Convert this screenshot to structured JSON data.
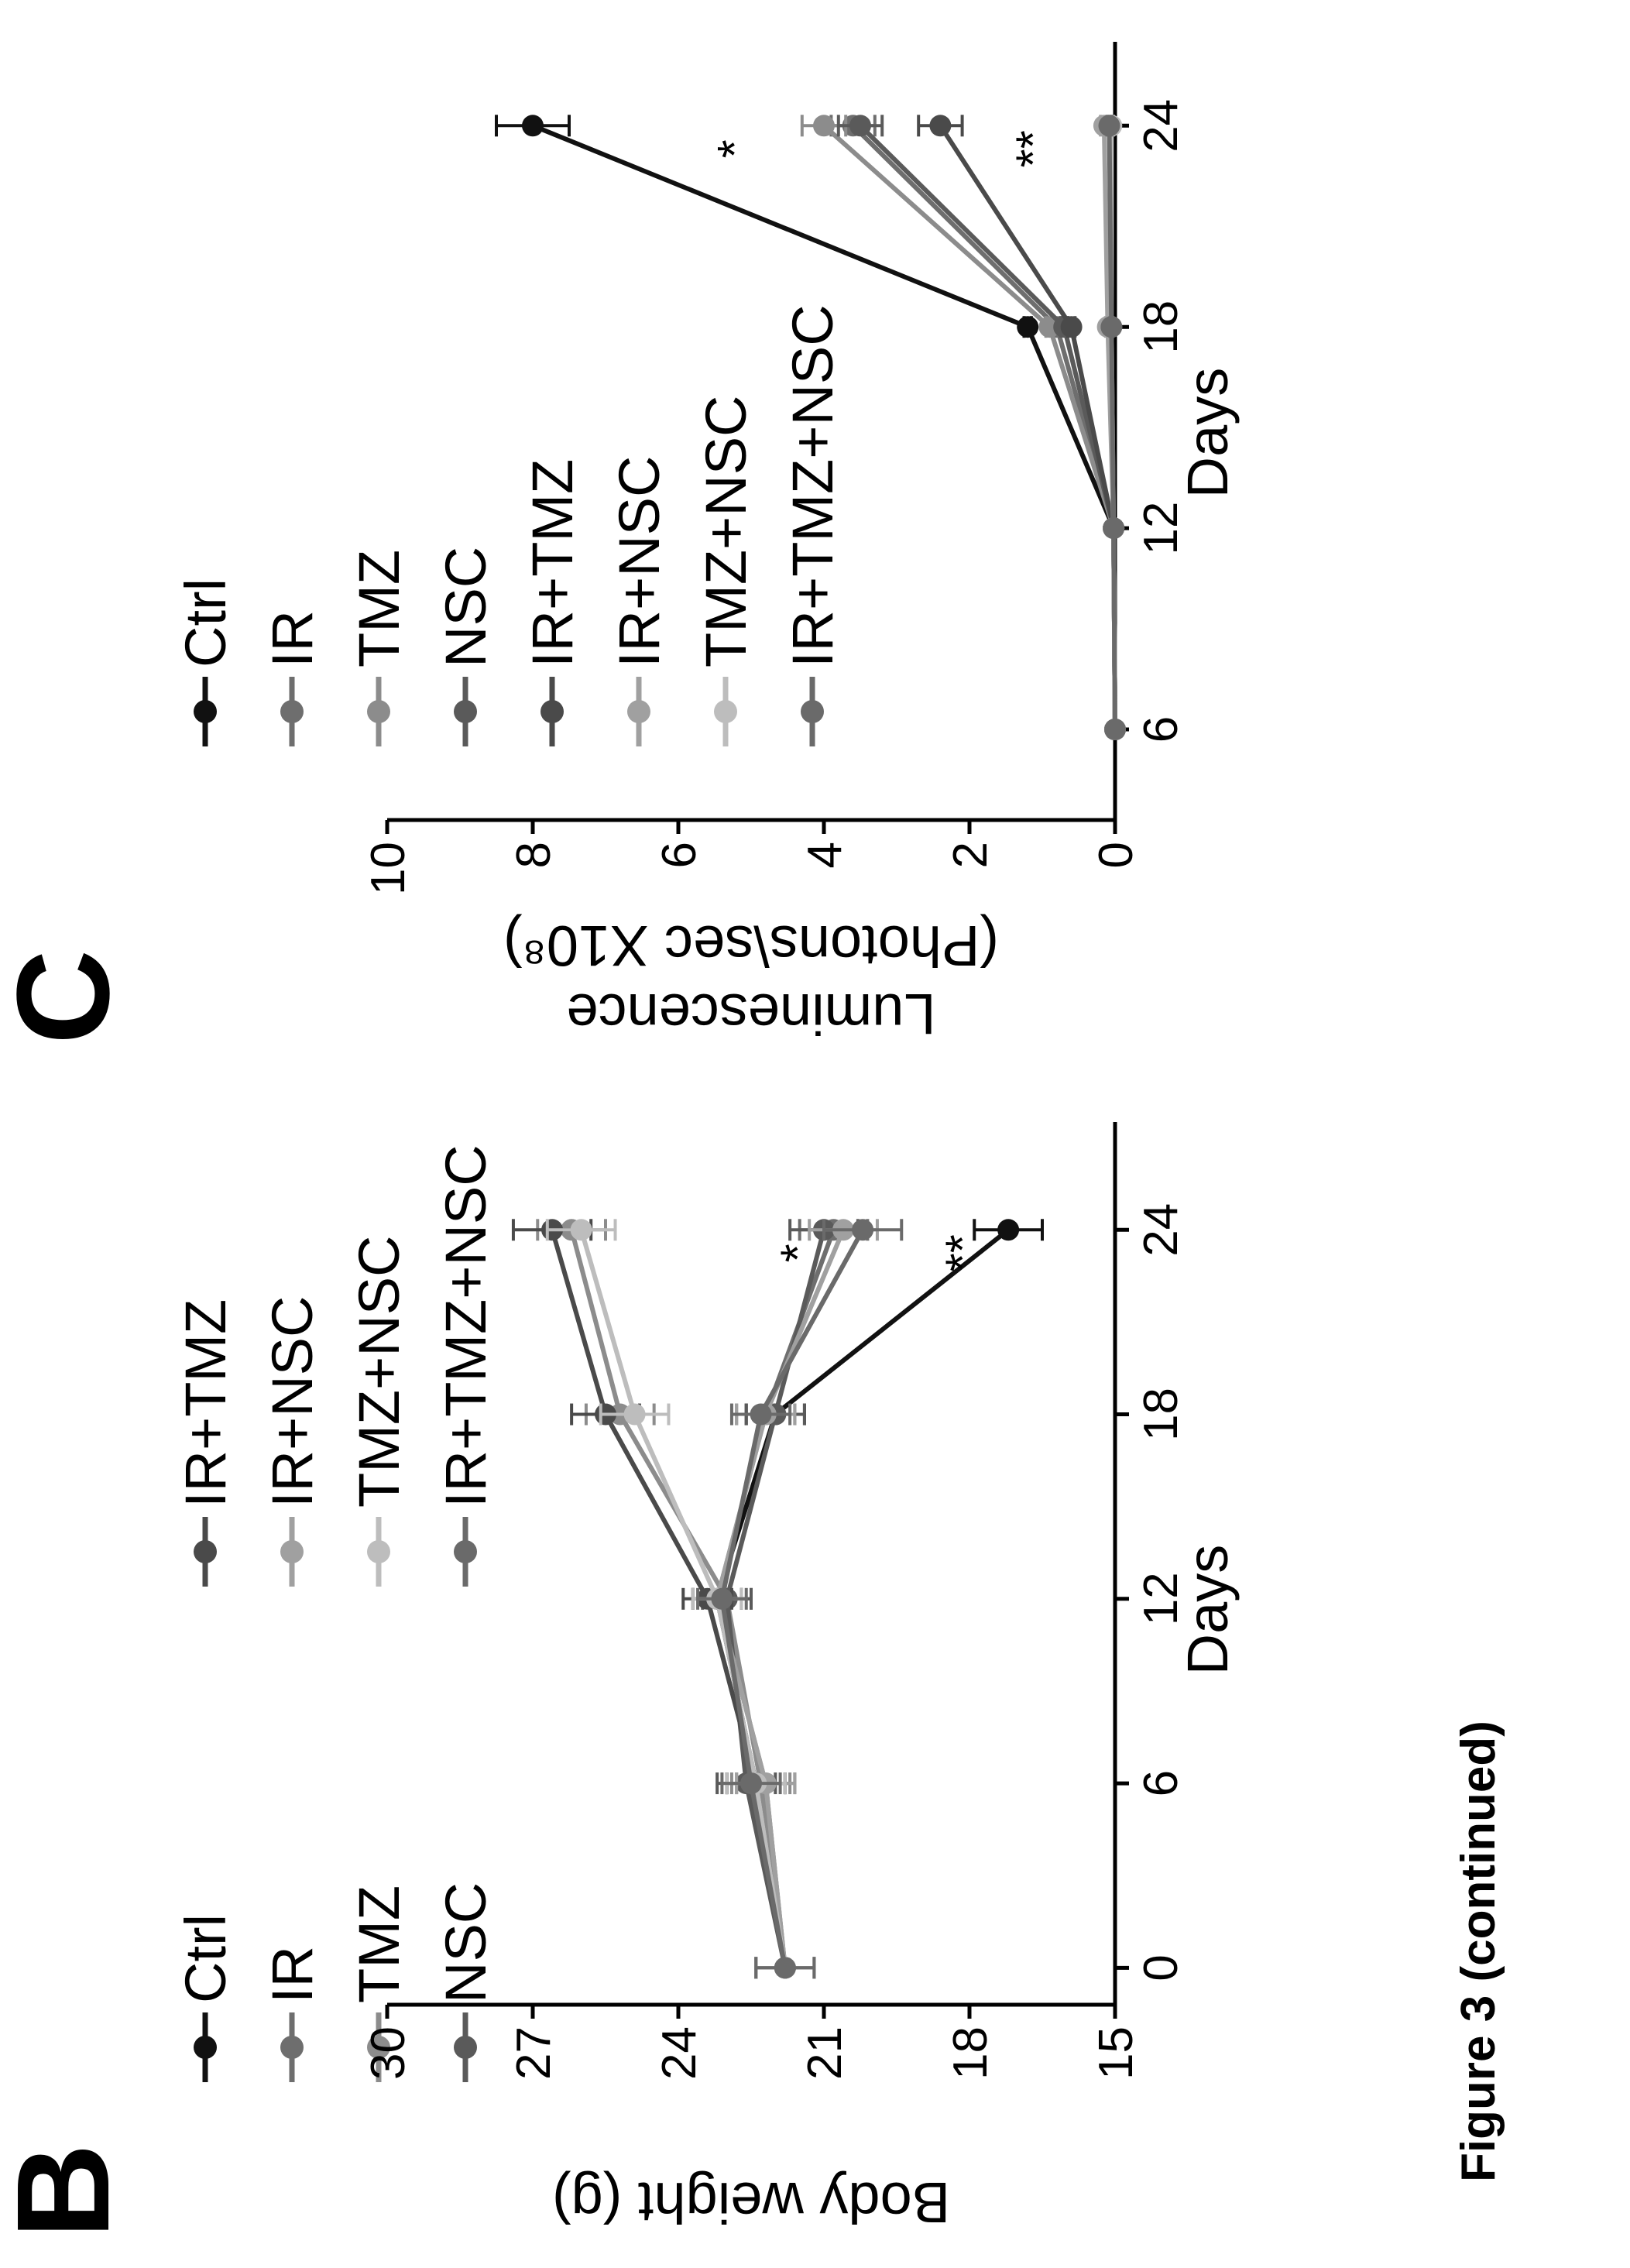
{
  "caption": "Figure 3 (continued)",
  "colors": {
    "Ctrl": "#111111",
    "IR": "#6e6e6e",
    "TMZ": "#8c8c8c",
    "NSC": "#5a5a5a",
    "IR+TMZ": "#4a4a4a",
    "IR+NSC": "#a0a0a0",
    "TMZ+NSC": "#bdbdbd",
    "IR+TMZ+NSC": "#6a6a6a"
  },
  "chart_data": [
    {
      "panel": "B",
      "type": "line",
      "xlabel": "Days",
      "ylabel": "Body weight (g)",
      "xlim": [
        0,
        24
      ],
      "ylim": [
        15,
        30
      ],
      "xticks": [
        "0",
        "6",
        "12",
        "18",
        "24"
      ],
      "yticks": [
        "15",
        "18",
        "21",
        "24",
        "27",
        "30"
      ],
      "x": [
        0,
        6,
        12,
        18,
        24
      ],
      "legend": [
        "Ctrl",
        "IR",
        "TMZ",
        "NSC",
        "IR+TMZ",
        "IR+NSC",
        "TMZ+NSC",
        "IR+TMZ+NSC"
      ],
      "series": [
        {
          "name": "Ctrl",
          "values": [
            21.8,
            22.4,
            23.2,
            22.0,
            17.2
          ],
          "err": [
            0.6,
            0.6,
            0.5,
            0.6,
            0.7
          ]
        },
        {
          "name": "IR",
          "values": [
            21.8,
            22.2,
            23.2,
            22.2,
            20.8
          ],
          "err": [
            0.6,
            0.6,
            0.5,
            0.6,
            0.7
          ]
        },
        {
          "name": "TMZ",
          "values": [
            21.8,
            22.3,
            23.0,
            25.2,
            26.2
          ],
          "err": [
            0.6,
            0.6,
            0.5,
            0.7,
            0.7
          ]
        },
        {
          "name": "NSC",
          "values": [
            21.8,
            22.6,
            23.0,
            22.0,
            21.0
          ],
          "err": [
            0.6,
            0.6,
            0.5,
            0.6,
            0.7
          ]
        },
        {
          "name": "IR+TMZ",
          "values": [
            21.8,
            22.4,
            23.4,
            25.5,
            26.6
          ],
          "err": [
            0.6,
            0.6,
            0.5,
            0.7,
            0.8
          ]
        },
        {
          "name": "IR+NSC",
          "values": [
            21.8,
            22.2,
            23.2,
            22.2,
            20.6
          ],
          "err": [
            0.6,
            0.6,
            0.5,
            0.6,
            0.7
          ]
        },
        {
          "name": "TMZ+NSC",
          "values": [
            21.8,
            22.4,
            23.2,
            24.9,
            26.0
          ],
          "err": [
            0.6,
            0.6,
            0.5,
            0.7,
            0.7
          ]
        },
        {
          "name": "IR+TMZ+NSC",
          "values": [
            21.8,
            22.5,
            23.1,
            22.3,
            20.2
          ],
          "err": [
            0.6,
            0.6,
            0.5,
            0.6,
            0.8
          ]
        }
      ],
      "annotations": [
        {
          "text": "*",
          "x": 24,
          "y": 21.2
        },
        {
          "text": "**",
          "x": 24,
          "y": 17.8
        }
      ]
    },
    {
      "panel": "C",
      "type": "line",
      "xlabel": "Days",
      "ylabel": "Luminescence (Photons\\sec X10⁸)",
      "xlim": [
        6,
        24
      ],
      "ylim": [
        0,
        10
      ],
      "xticks": [
        "6",
        "12",
        "18",
        "24"
      ],
      "yticks": [
        "0",
        "2",
        "4",
        "6",
        "8",
        "10"
      ],
      "x": [
        6,
        12,
        18,
        24
      ],
      "legend": [
        "Ctrl",
        "IR",
        "TMZ",
        "NSC",
        "IR+TMZ",
        "IR+NSC",
        "TMZ+NSC",
        "IR+TMZ+NSC"
      ],
      "series": [
        {
          "name": "Ctrl",
          "values": [
            0.0,
            0.02,
            1.2,
            8.0
          ],
          "err": [
            0,
            0,
            0.05,
            0.5
          ]
        },
        {
          "name": "IR",
          "values": [
            0.0,
            0.02,
            0.8,
            3.6
          ],
          "err": [
            0,
            0,
            0.05,
            0.3
          ]
        },
        {
          "name": "TMZ",
          "values": [
            0.0,
            0.02,
            0.9,
            4.0
          ],
          "err": [
            0,
            0,
            0.05,
            0.3
          ]
        },
        {
          "name": "NSC",
          "values": [
            0.0,
            0.02,
            0.7,
            3.5
          ],
          "err": [
            0,
            0,
            0.05,
            0.3
          ]
        },
        {
          "name": "IR+TMZ",
          "values": [
            0.0,
            0.02,
            0.6,
            2.4
          ],
          "err": [
            0,
            0,
            0.05,
            0.3
          ]
        },
        {
          "name": "IR+NSC",
          "values": [
            0.0,
            0.02,
            0.1,
            0.15
          ],
          "err": [
            0,
            0,
            0.03,
            0.05
          ]
        },
        {
          "name": "TMZ+NSC",
          "values": [
            0.0,
            0.02,
            0.05,
            0.05
          ],
          "err": [
            0,
            0,
            0.02,
            0.03
          ]
        },
        {
          "name": "IR+TMZ+NSC",
          "values": [
            0.0,
            0.02,
            0.05,
            0.08
          ],
          "err": [
            0,
            0,
            0.02,
            0.03
          ]
        }
      ],
      "annotations": [
        {
          "text": "*",
          "x": 24,
          "y": 5.0
        },
        {
          "text": "**",
          "x": 24,
          "y": 0.9
        }
      ]
    }
  ]
}
